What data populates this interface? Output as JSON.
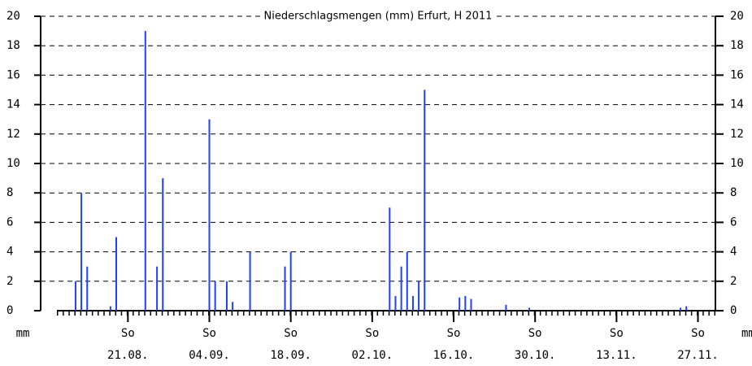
{
  "chart_data": {
    "type": "bar",
    "title": "Niederschlagsmengen (mm) Erfurt, H 2011",
    "ylabel": "mm",
    "y2label": "mm",
    "x": [
      5,
      6,
      7,
      11,
      12,
      17,
      19,
      20,
      28,
      29,
      31,
      32,
      35,
      41,
      42,
      59,
      60,
      61,
      62,
      63,
      64,
      65,
      71,
      72,
      73,
      79,
      83,
      109,
      110
    ],
    "values": [
      2,
      8,
      3,
      0.3,
      5,
      19,
      3,
      9,
      13,
      2,
      2,
      0.6,
      4,
      3,
      4,
      7,
      1,
      3,
      4,
      1,
      2,
      15,
      0.9,
      1,
      0.8,
      0.4,
      0.2,
      0.2,
      0.3
    ],
    "color": "#2040ff",
    "xlim": [
      -1,
      115
    ],
    "xtick_weekday": "So",
    "xticks": [
      {
        "value": 14,
        "label": "21.08."
      },
      {
        "value": 28,
        "label": "04.09."
      },
      {
        "value": 42,
        "label": "18.09."
      },
      {
        "value": 56,
        "label": "02.10."
      },
      {
        "value": 70,
        "label": "16.10."
      },
      {
        "value": 84,
        "label": "30.10."
      },
      {
        "value": 98,
        "label": "13.11."
      },
      {
        "value": 112,
        "label": "27.11."
      }
    ],
    "ylim": [
      0,
      20
    ],
    "yticks": [
      0,
      2,
      4,
      6,
      8,
      10,
      12,
      14,
      16,
      18,
      20
    ],
    "y2lim": [
      0,
      20
    ],
    "y2ticks": [
      0,
      2,
      4,
      6,
      8,
      10,
      12,
      14,
      16,
      18,
      20
    ],
    "grid": true
  }
}
